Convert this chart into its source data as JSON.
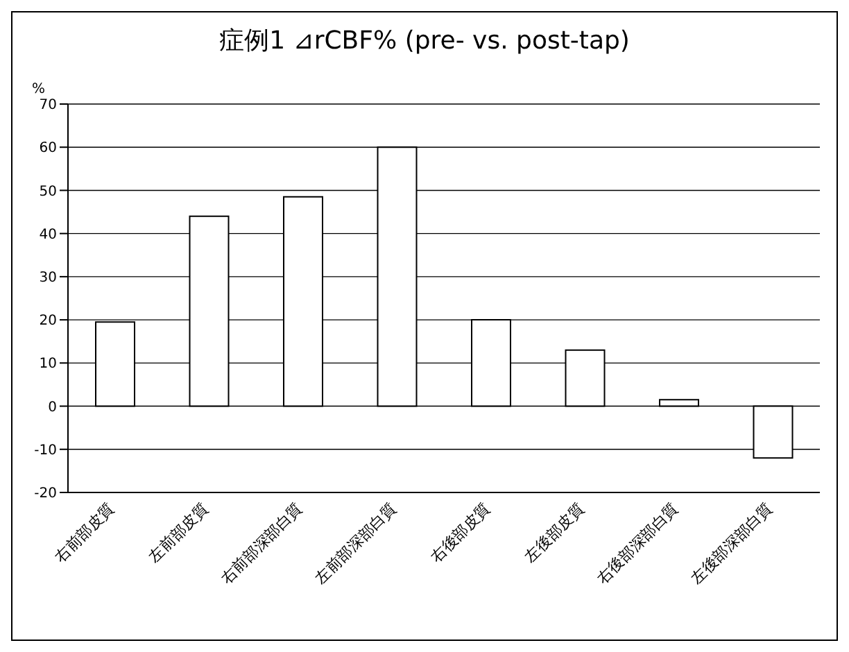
{
  "chart_data": {
    "type": "bar",
    "title": "症例1 ⊿rCBF% (pre- vs. post-tap)",
    "ylabel": "%",
    "categories": [
      "右前部皮質",
      "左前部皮質",
      "右前部深部白質",
      "左前部深部白質",
      "右後部皮質",
      "左後部皮質",
      "右後部深部白質",
      "左後部深部白質"
    ],
    "values": [
      19.5,
      44,
      48.5,
      60,
      20,
      13,
      1.5,
      -12
    ],
    "color": "#ffffff",
    "ylim": [
      -20,
      70
    ],
    "yticks": [
      -20,
      -10,
      0,
      10,
      20,
      30,
      40,
      50,
      60,
      70
    ],
    "grid": "y"
  }
}
